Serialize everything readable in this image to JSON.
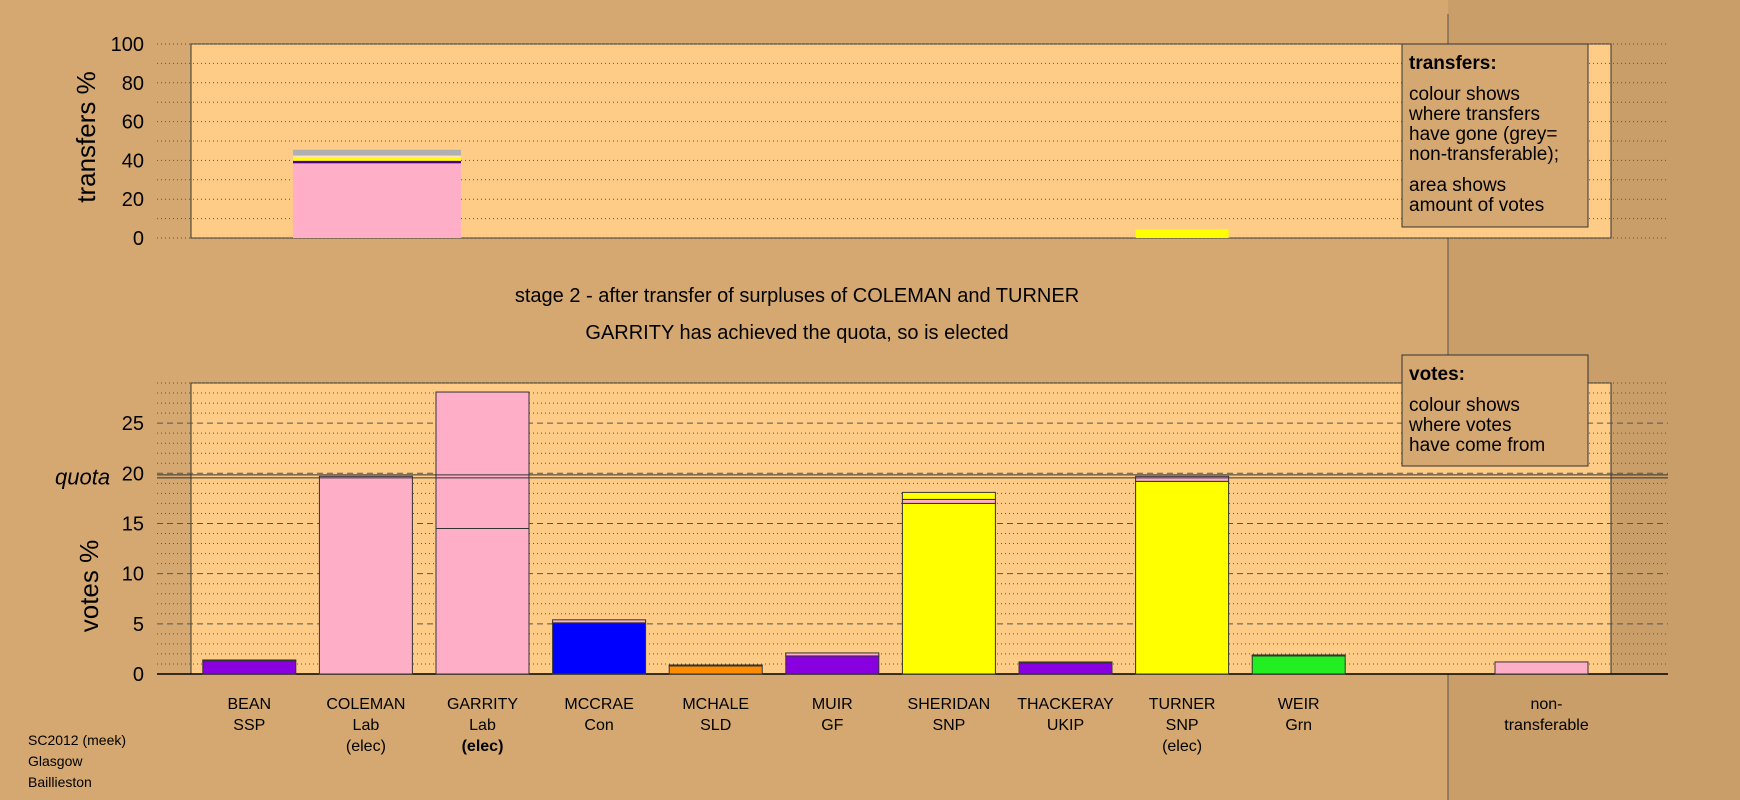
{
  "chart_data": [
    {
      "type": "bar",
      "ylabel": "transfers %",
      "ylim": [
        0,
        100
      ],
      "yticks": [
        0,
        20,
        40,
        60,
        80,
        100
      ],
      "bars": [
        {
          "candidate": "COLEMAN",
          "segments": [
            {
              "from": 0,
              "to": 38.5,
              "color": "#ffaec8"
            },
            {
              "from": 38.5,
              "to": 39.8,
              "color": "#4b0082"
            },
            {
              "from": 39.8,
              "to": 41.2,
              "color": "#ffff00"
            },
            {
              "from": 41.2,
              "to": 42.5,
              "color": "#ffe0b8"
            },
            {
              "from": 42.5,
              "to": 45.5,
              "color": "#b0b0b0"
            }
          ]
        },
        {
          "candidate": "TURNER",
          "segments": [
            {
              "from": 0,
              "to": 4.5,
              "color": "#ffff00"
            }
          ]
        }
      ],
      "legend": {
        "heading": "transfers:",
        "line1": "colour shows",
        "line2": "where transfers",
        "line3": "have gone (grey=",
        "line4": "non-transferable);",
        "line5": "area shows",
        "line6": "amount of votes"
      }
    },
    {
      "type": "bar",
      "ylabel": "votes %",
      "quota_label": "quota",
      "quota": 19.7,
      "ylim": [
        0,
        29
      ],
      "yticks": [
        0,
        5,
        10,
        15,
        20,
        25
      ],
      "candidates": [
        {
          "name": "BEAN",
          "party": "SSP",
          "status": "",
          "segments": [
            {
              "value": 1.3,
              "color": "#8800e0"
            },
            {
              "value": 0.1,
              "color": "#ffe0b8"
            }
          ]
        },
        {
          "name": "COLEMAN",
          "party": "Lab",
          "status": "(elec)",
          "segments": [
            {
              "value": 19.7,
              "color": "#ffaec8"
            }
          ]
        },
        {
          "name": "GARRITY",
          "party": "Lab",
          "status": "(elec)",
          "bold_status": true,
          "segments": [
            {
              "value": 14.5,
              "color": "#ffaec8"
            },
            {
              "value": 13.6,
              "color": "#ffaec8"
            }
          ]
        },
        {
          "name": "MCCRAE",
          "party": "Con",
          "status": "",
          "segments": [
            {
              "value": 5.1,
              "color": "#0000ff"
            },
            {
              "value": 0.3,
              "color": "#ffaec8"
            }
          ]
        },
        {
          "name": "MCHALE",
          "party": "SLD",
          "status": "",
          "segments": [
            {
              "value": 0.8,
              "color": "#ff8c00"
            },
            {
              "value": 0.1,
              "color": "#ffe0b8"
            }
          ]
        },
        {
          "name": "MUIR",
          "party": "GF",
          "status": "",
          "segments": [
            {
              "value": 1.8,
              "color": "#8800e0"
            },
            {
              "value": 0.3,
              "color": "#ffaec8"
            }
          ]
        },
        {
          "name": "SHERIDAN",
          "party": "SNP",
          "status": "",
          "segments": [
            {
              "value": 17.0,
              "color": "#ffff00"
            },
            {
              "value": 0.4,
              "color": "#ffaec8"
            },
            {
              "value": 0.7,
              "color": "#ffff00"
            }
          ]
        },
        {
          "name": "THACKERAY",
          "party": "UKIP",
          "status": "",
          "segments": [
            {
              "value": 1.1,
              "color": "#8800e0"
            },
            {
              "value": 0.1,
              "color": "#ffe0b8"
            }
          ]
        },
        {
          "name": "TURNER",
          "party": "SNP",
          "status": "(elec)",
          "segments": [
            {
              "value": 19.2,
              "color": "#ffff00"
            },
            {
              "value": 0.5,
              "color": "#ffaec8"
            }
          ]
        },
        {
          "name": "WEIR",
          "party": "Grn",
          "status": "",
          "segments": [
            {
              "value": 1.8,
              "color": "#22ee22"
            },
            {
              "value": 0.1,
              "color": "#ffaec8"
            }
          ]
        }
      ],
      "nontransferable": {
        "name": "non-",
        "party": "transferable",
        "value": 1.2,
        "color": "#ffaec8"
      },
      "legend": {
        "heading": "votes:",
        "line1": "colour shows",
        "line2": "where votes",
        "line3": "have come from"
      }
    }
  ],
  "stage_title": "stage 2 - after transfer of surpluses of COLEMAN and TURNER",
  "stage_subtitle": "GARRITY has achieved the quota, so is elected",
  "footer": {
    "line1": "SC2012 (meek)",
    "line2": "Glasgow",
    "line3": "Baillieston"
  }
}
